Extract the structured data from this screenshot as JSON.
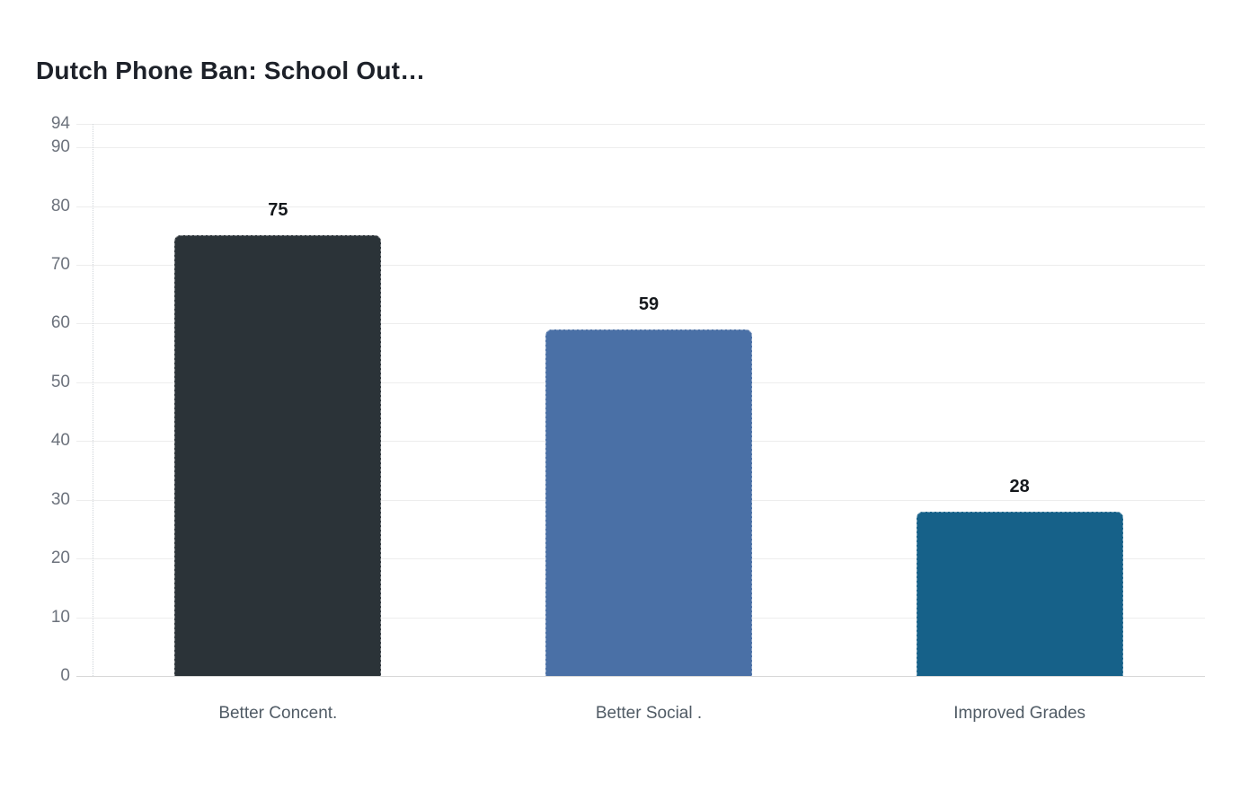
{
  "page": {
    "background": "#ffffff"
  },
  "chart_data": {
    "type": "bar",
    "title": "Dutch Phone Ban: School Out…",
    "categories": [
      "Better Concent.",
      "Better Social .",
      "Improved Grades"
    ],
    "values": [
      75,
      59,
      28
    ],
    "value_labels": [
      "75",
      "59",
      "28"
    ],
    "bar_colors": [
      "#2b3338",
      "#4a70a6",
      "#166189"
    ],
    "xlabel": "",
    "ylabel": "",
    "ylim": [
      0,
      94
    ],
    "yticks": [
      94,
      90,
      80,
      70,
      60,
      50,
      40,
      30,
      20,
      10,
      0
    ],
    "grid": true,
    "legend": false,
    "colors": {
      "title": "#1d2129",
      "gridline": "#ededed",
      "zero_line": "#d8d8d8",
      "axis_dotted": "#cfd4d9",
      "y_tick_label": "#6c727c",
      "x_tick_label": "#505b65",
      "value_label": "#15181c"
    }
  }
}
